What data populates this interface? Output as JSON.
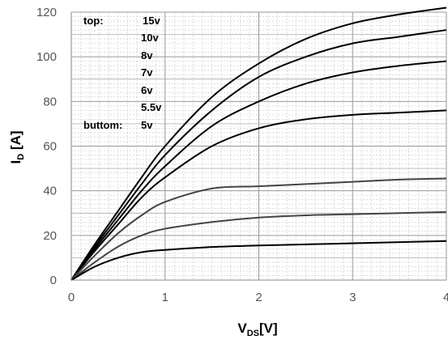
{
  "chart_data": {
    "type": "line",
    "xlabel_main": "V",
    "xlabel_sub": "DS",
    "xlabel_tail": "[V]",
    "ylabel_main": "I",
    "ylabel_sub": "D",
    "ylabel_tail": " [A]",
    "xlim": [
      0,
      4
    ],
    "ylim": [
      0,
      120
    ],
    "x_ticks": [
      "0",
      "1",
      "2",
      "3",
      "4"
    ],
    "y_ticks": [
      "0",
      "20",
      "40",
      "60",
      "80",
      "100",
      "120"
    ],
    "grid": true,
    "minor_grid": true,
    "legend": {
      "placement": "top-left",
      "top_label": "top:",
      "bottom_label": "buttom:",
      "entries": [
        "15v",
        "10v",
        "8v",
        "7v",
        "6v",
        "5.5v",
        "5v"
      ]
    },
    "x": [
      0,
      0.25,
      0.5,
      0.75,
      1.0,
      1.5,
      2.0,
      2.5,
      3.0,
      3.5,
      4.0
    ],
    "series": [
      {
        "name": "15v",
        "color": "#000000",
        "values": [
          0,
          16,
          31,
          46,
          60,
          82,
          97,
          108,
          115,
          119,
          122
        ]
      },
      {
        "name": "10v",
        "color": "#000000",
        "values": [
          0,
          15,
          29,
          43,
          56,
          76,
          91,
          100,
          106,
          109,
          112
        ]
      },
      {
        "name": "8v",
        "color": "#000000",
        "values": [
          0,
          14,
          27,
          40,
          51,
          69,
          80,
          88,
          93,
          96,
          98
        ]
      },
      {
        "name": "7v",
        "color": "#000000",
        "values": [
          0,
          13,
          25,
          37,
          46,
          60,
          68,
          72,
          74,
          75,
          76
        ]
      },
      {
        "name": "6v",
        "color": "#444444",
        "values": [
          0,
          11,
          21,
          29,
          35,
          41,
          42,
          43,
          44,
          45,
          45.5
        ]
      },
      {
        "name": "5.5v",
        "color": "#444444",
        "values": [
          0,
          8,
          15,
          20,
          23,
          26,
          28,
          29,
          29.5,
          30,
          30.5
        ]
      },
      {
        "name": "5v",
        "color": "#000000",
        "values": [
          0,
          6,
          10,
          12.5,
          13.5,
          14.8,
          15.5,
          16,
          16.5,
          17,
          17.5
        ]
      }
    ]
  }
}
